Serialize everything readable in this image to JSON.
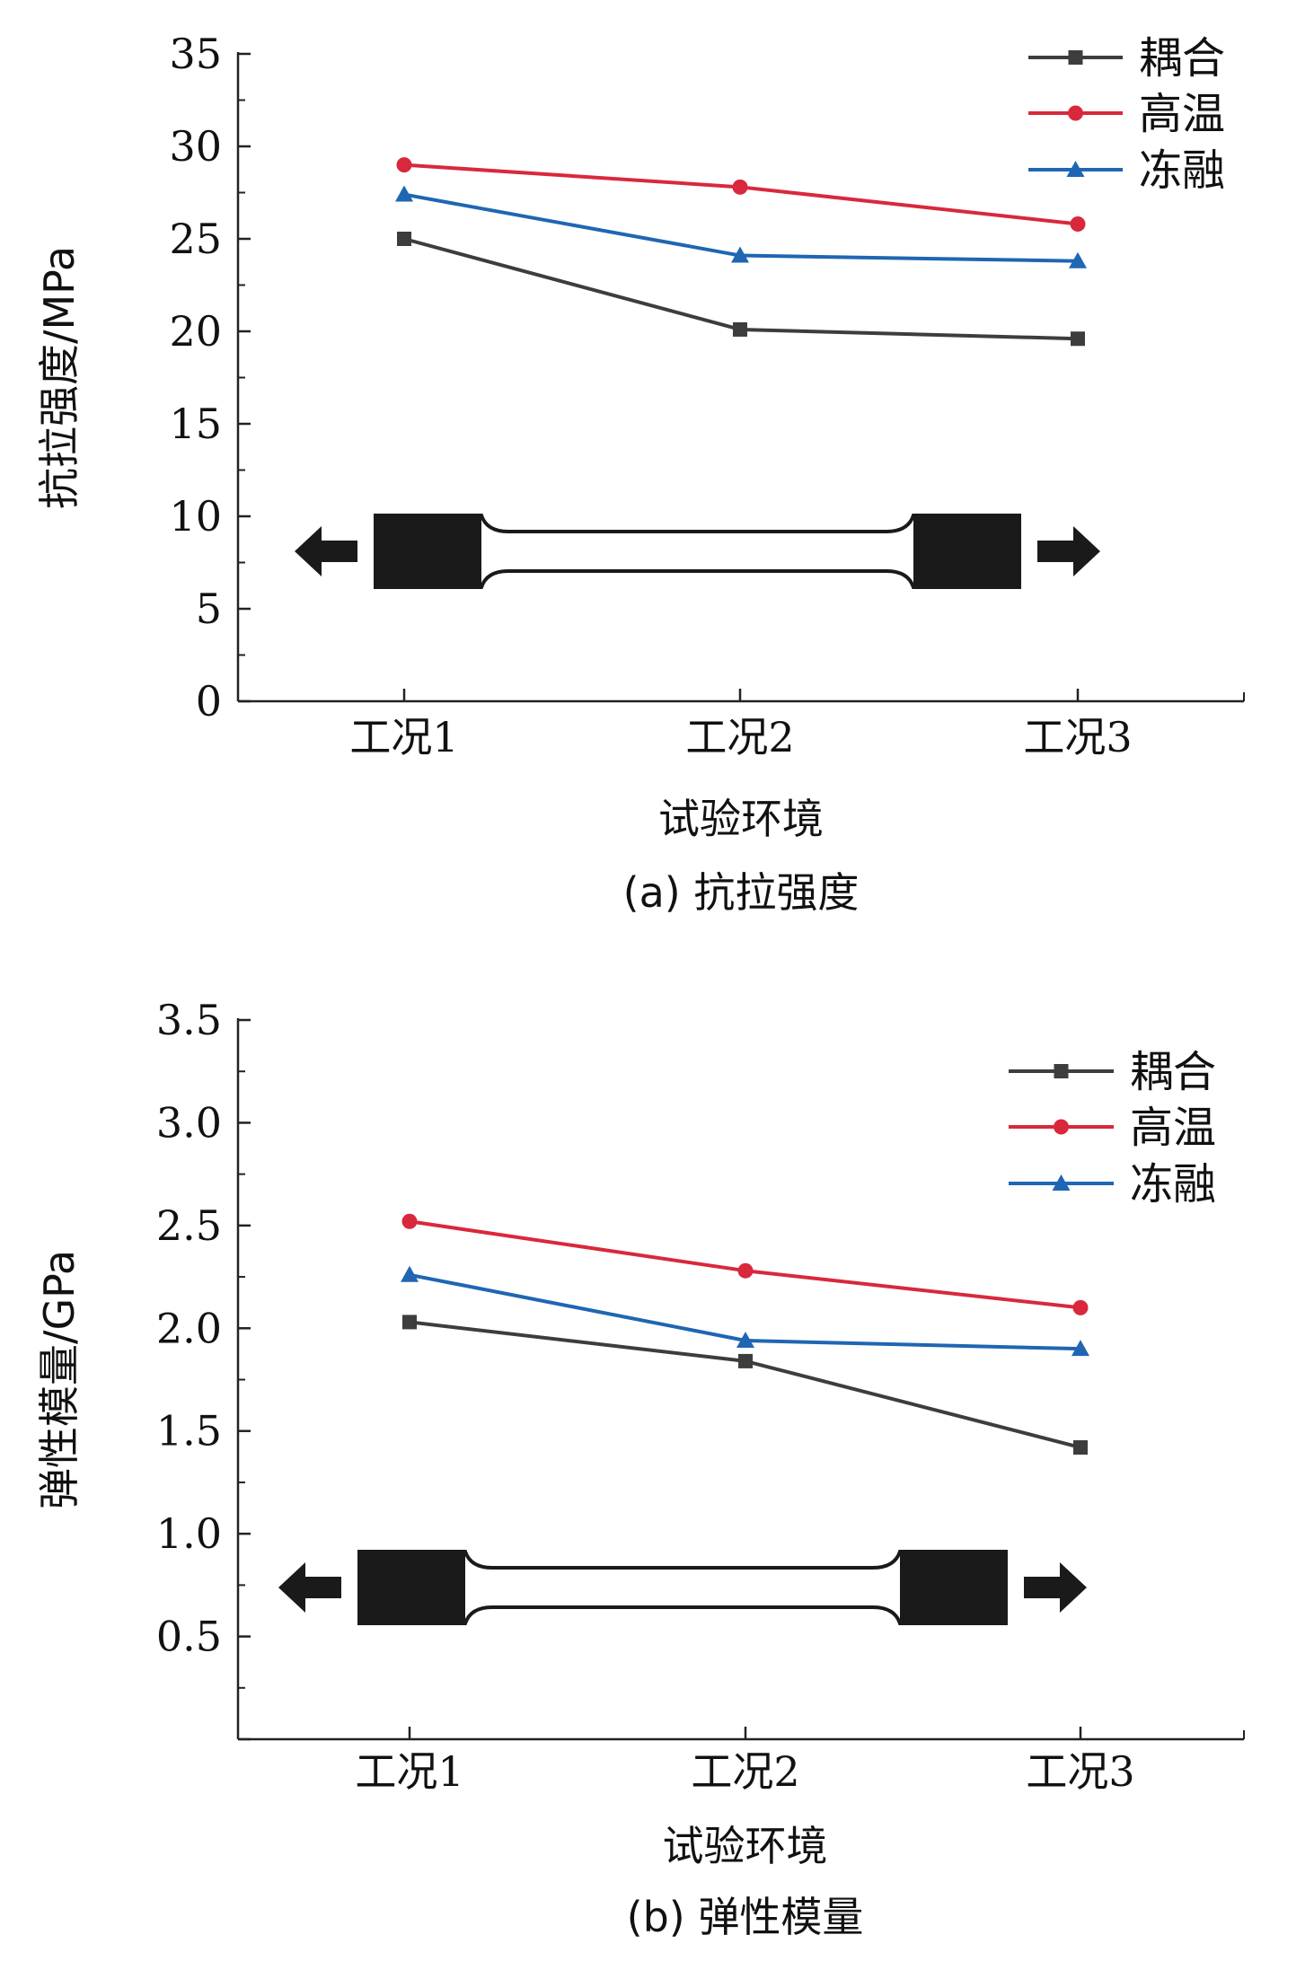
{
  "chart_data": [
    {
      "type": "line",
      "caption": "(a) 抗拉强度",
      "xlabel": "试验环境",
      "ylabel": "抗拉强度/MPa",
      "categories": [
        "工况1",
        "工况2",
        "工况3"
      ],
      "ylim": [
        0,
        35
      ],
      "yticks": [
        "0",
        "5",
        "10",
        "15",
        "20",
        "25",
        "30",
        "35"
      ],
      "series": [
        {
          "name": "耦合",
          "values": [
            25.0,
            20.1,
            19.6
          ],
          "color": "#3d3d3d",
          "marker": "square"
        },
        {
          "name": "高温",
          "values": [
            29.0,
            27.8,
            25.8
          ],
          "color": "#d9283c",
          "marker": "circle"
        },
        {
          "name": "冻融",
          "values": [
            27.4,
            24.1,
            23.8
          ],
          "color": "#1f66b3",
          "marker": "triangle"
        }
      ],
      "legend_position": "top-right",
      "grid": false,
      "inset_icon": "tensile-specimen-icon"
    },
    {
      "type": "line",
      "caption": "(b) 弹性模量",
      "xlabel": "试验环境",
      "ylabel": "弹性模量/GPa",
      "categories": [
        "工况1",
        "工况2",
        "工况3"
      ],
      "ylim": [
        0,
        3.5
      ],
      "yticks": [
        "",
        "0.5",
        "1.0",
        "1.5",
        "2.0",
        "2.5",
        "3.0",
        "3.5"
      ],
      "series": [
        {
          "name": "耦合",
          "values": [
            2.03,
            1.84,
            1.42
          ],
          "color": "#3d3d3d",
          "marker": "square"
        },
        {
          "name": "高温",
          "values": [
            2.52,
            2.28,
            2.1
          ],
          "color": "#d9283c",
          "marker": "circle"
        },
        {
          "name": "冻融",
          "values": [
            2.26,
            1.94,
            1.9
          ],
          "color": "#1f66b3",
          "marker": "triangle"
        }
      ],
      "legend_position": "top-right",
      "grid": false,
      "inset_icon": "tensile-specimen-icon"
    }
  ]
}
